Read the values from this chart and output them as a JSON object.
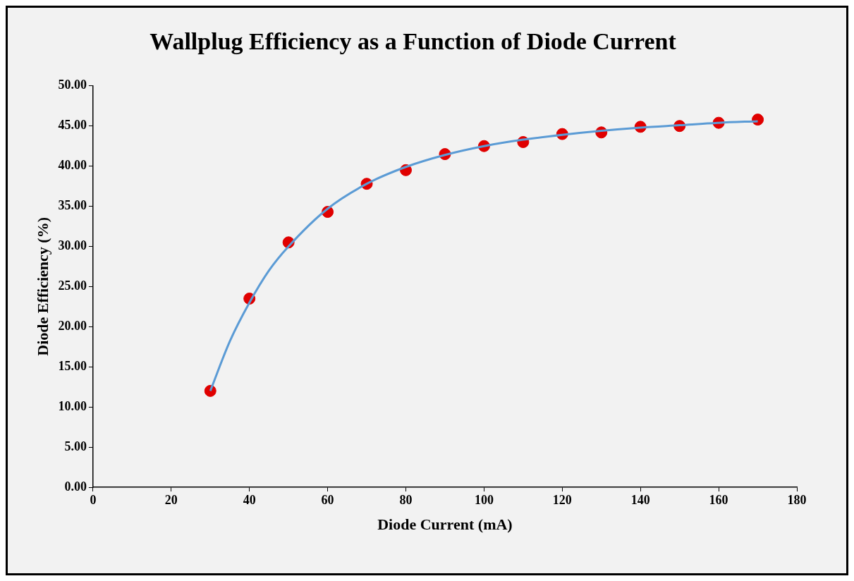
{
  "chart_data": {
    "type": "scatter",
    "title": "Wallplug Efficiency as a Function of Diode Current",
    "xlabel": "Diode Current (mA)",
    "ylabel": "Diode Efficiency (%)",
    "x": [
      30,
      40,
      50,
      60,
      70,
      80,
      90,
      100,
      110,
      120,
      130,
      140,
      150,
      160,
      170
    ],
    "series": [
      {
        "type": "scatter",
        "color": "#e00000",
        "marker": "circle",
        "values": [
          12.0,
          23.5,
          30.5,
          34.3,
          37.8,
          39.5,
          41.5,
          42.5,
          43.0,
          44.0,
          44.2,
          44.9,
          45.0,
          45.4,
          45.8
        ]
      },
      {
        "type": "line",
        "color": "#5b9bd5",
        "marker": "none",
        "line_style": "solid",
        "x": [
          30,
          35,
          40,
          45,
          50,
          60,
          70,
          80,
          90,
          100,
          110,
          120,
          130,
          140,
          150,
          160,
          170
        ],
        "values": [
          12.0,
          18.2,
          23.0,
          27.0,
          30.0,
          34.7,
          37.8,
          39.9,
          41.4,
          42.5,
          43.3,
          43.9,
          44.4,
          44.8,
          45.1,
          45.4,
          45.6
        ]
      }
    ],
    "xlim": [
      0,
      180
    ],
    "xticks": [
      0,
      20,
      40,
      60,
      80,
      100,
      120,
      140,
      160,
      180
    ],
    "ylim": [
      0,
      50
    ],
    "yticks": [
      {
        "value": 0,
        "label": "0.00"
      },
      {
        "value": 5,
        "label": "5.00"
      },
      {
        "value": 10,
        "label": "10.00"
      },
      {
        "value": 15,
        "label": "15.00"
      },
      {
        "value": 20,
        "label": "20.00"
      },
      {
        "value": 25,
        "label": "25.00"
      },
      {
        "value": 30,
        "label": "30.00"
      },
      {
        "value": 35,
        "label": "35.00"
      },
      {
        "value": 40,
        "label": "40.00"
      },
      {
        "value": 45,
        "label": "45.00"
      },
      {
        "value": 50,
        "label": "50.00"
      }
    ],
    "grid": false,
    "legend": false
  }
}
